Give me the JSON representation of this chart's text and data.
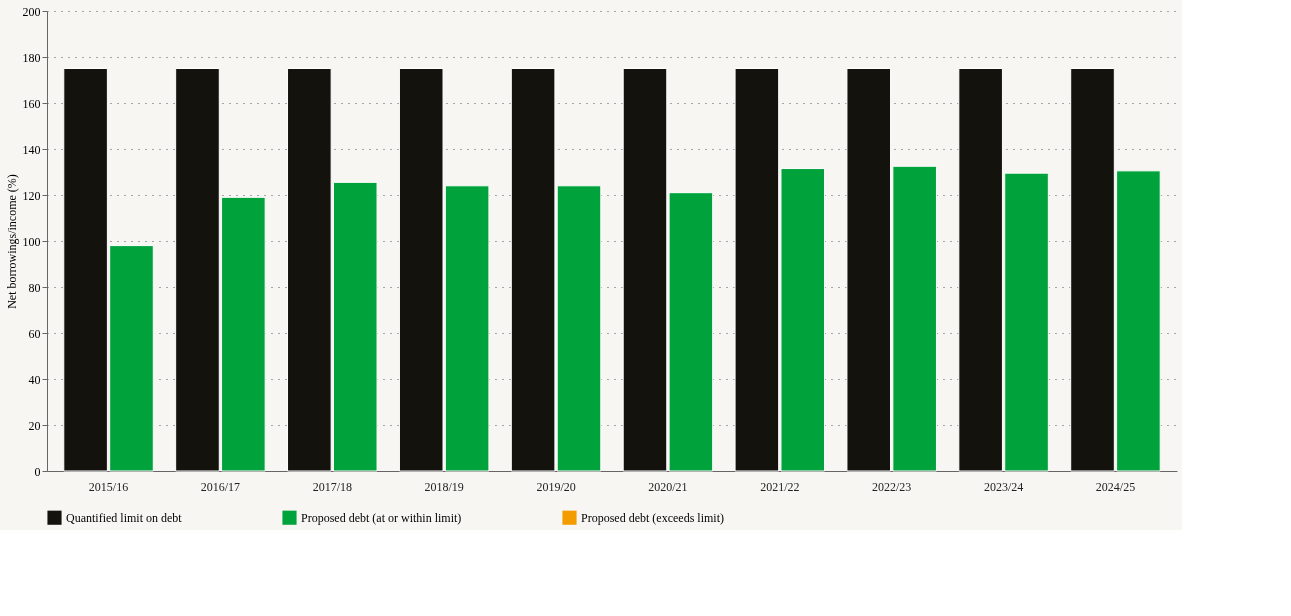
{
  "chart_data": {
    "type": "bar",
    "ylabel": "Net borrowings/income (%)",
    "categories": [
      "2015/16",
      "2016/17",
      "2017/18",
      "2018/19",
      "2019/20",
      "2020/21",
      "2021/22",
      "2022/23",
      "2023/24",
      "2024/25"
    ],
    "series": [
      {
        "name": "Quantified limit on debt",
        "color": "#13120d",
        "values": [
          175,
          175,
          175,
          175,
          175,
          175,
          175,
          175,
          175,
          175
        ]
      },
      {
        "name": "Proposed debt (at or within limit)",
        "color": "#00a23b",
        "values": [
          98,
          119,
          125.5,
          124,
          124,
          121,
          131.5,
          132.5,
          129.5,
          130.5
        ]
      },
      {
        "name": "Proposed debt (exceeds limit)",
        "color": "#f39c00",
        "values": [
          null,
          null,
          null,
          null,
          null,
          null,
          null,
          null,
          null,
          null
        ]
      }
    ],
    "ylim": [
      0,
      200
    ],
    "yticks": [
      0,
      20,
      40,
      60,
      80,
      100,
      120,
      140,
      160,
      180,
      200
    ],
    "grid": "y",
    "legend": "bottom"
  }
}
